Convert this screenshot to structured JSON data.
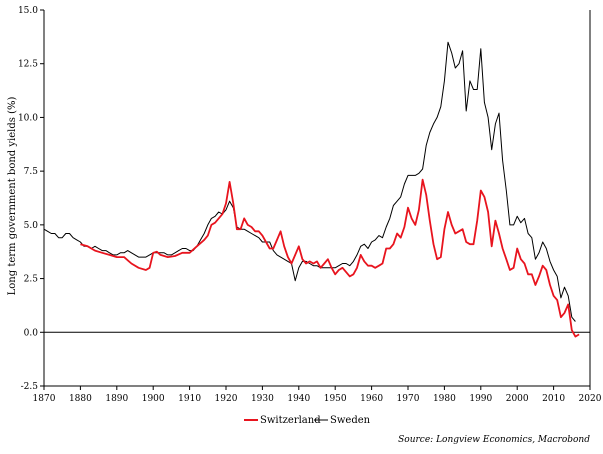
{
  "chart_data": {
    "type": "line",
    "title": "",
    "xlabel": "",
    "ylabel": "Long term government bond yields (%)",
    "xlim": [
      1870,
      2020
    ],
    "ylim": [
      -2.5,
      15.0
    ],
    "x_ticks": [
      1870,
      1880,
      1890,
      1900,
      1910,
      1920,
      1930,
      1940,
      1950,
      1960,
      1970,
      1980,
      1990,
      2000,
      2010,
      2020
    ],
    "y_ticks": [
      -2.5,
      0.0,
      2.5,
      5.0,
      7.5,
      10.0,
      12.5,
      15.0
    ],
    "y_tick_labels": [
      "-2.5",
      "0.0",
      "2.5",
      "5.0",
      "7.5",
      "10.0",
      "12.5",
      "15.0"
    ],
    "zero_line": true,
    "grid": false,
    "legend_position": "bottom-center",
    "source": "Source: Longview Economics, Macrobond",
    "series": [
      {
        "name": "Switzerland",
        "color": "#e8141e",
        "points": [
          [
            1880,
            4.1
          ],
          [
            1882,
            4.0
          ],
          [
            1884,
            3.8
          ],
          [
            1886,
            3.7
          ],
          [
            1888,
            3.6
          ],
          [
            1890,
            3.5
          ],
          [
            1892,
            3.5
          ],
          [
            1894,
            3.2
          ],
          [
            1896,
            3.0
          ],
          [
            1898,
            2.9
          ],
          [
            1899,
            3.0
          ],
          [
            1900,
            3.7
          ],
          [
            1901,
            3.75
          ],
          [
            1902,
            3.6
          ],
          [
            1904,
            3.5
          ],
          [
            1906,
            3.55
          ],
          [
            1908,
            3.7
          ],
          [
            1910,
            3.7
          ],
          [
            1912,
            4.0
          ],
          [
            1914,
            4.3
          ],
          [
            1915,
            4.5
          ],
          [
            1916,
            5.0
          ],
          [
            1917,
            5.1
          ],
          [
            1918,
            5.3
          ],
          [
            1919,
            5.5
          ],
          [
            1920,
            6.0
          ],
          [
            1921,
            7.0
          ],
          [
            1922,
            6.0
          ],
          [
            1923,
            4.8
          ],
          [
            1924,
            4.8
          ],
          [
            1925,
            5.3
          ],
          [
            1926,
            5.0
          ],
          [
            1927,
            4.9
          ],
          [
            1928,
            4.7
          ],
          [
            1929,
            4.7
          ],
          [
            1930,
            4.5
          ],
          [
            1931,
            4.2
          ],
          [
            1932,
            3.9
          ],
          [
            1933,
            3.9
          ],
          [
            1934,
            4.3
          ],
          [
            1935,
            4.7
          ],
          [
            1936,
            4.0
          ],
          [
            1937,
            3.5
          ],
          [
            1938,
            3.2
          ],
          [
            1939,
            3.6
          ],
          [
            1940,
            4.0
          ],
          [
            1941,
            3.4
          ],
          [
            1942,
            3.2
          ],
          [
            1943,
            3.3
          ],
          [
            1944,
            3.2
          ],
          [
            1945,
            3.3
          ],
          [
            1946,
            3.0
          ],
          [
            1947,
            3.2
          ],
          [
            1948,
            3.4
          ],
          [
            1949,
            3.0
          ],
          [
            1950,
            2.7
          ],
          [
            1951,
            2.9
          ],
          [
            1952,
            3.0
          ],
          [
            1953,
            2.8
          ],
          [
            1954,
            2.6
          ],
          [
            1955,
            2.7
          ],
          [
            1956,
            3.0
          ],
          [
            1957,
            3.6
          ],
          [
            1958,
            3.3
          ],
          [
            1959,
            3.1
          ],
          [
            1960,
            3.1
          ],
          [
            1961,
            3.0
          ],
          [
            1962,
            3.1
          ],
          [
            1963,
            3.2
          ],
          [
            1964,
            3.9
          ],
          [
            1965,
            3.9
          ],
          [
            1966,
            4.1
          ],
          [
            1967,
            4.6
          ],
          [
            1968,
            4.4
          ],
          [
            1969,
            4.9
          ],
          [
            1970,
            5.8
          ],
          [
            1971,
            5.3
          ],
          [
            1972,
            5.0
          ],
          [
            1973,
            5.7
          ],
          [
            1974,
            7.1
          ],
          [
            1975,
            6.4
          ],
          [
            1976,
            5.2
          ],
          [
            1977,
            4.1
          ],
          [
            1978,
            3.4
          ],
          [
            1979,
            3.5
          ],
          [
            1980,
            4.8
          ],
          [
            1981,
            5.6
          ],
          [
            1982,
            5.0
          ],
          [
            1983,
            4.6
          ],
          [
            1984,
            4.7
          ],
          [
            1985,
            4.8
          ],
          [
            1986,
            4.2
          ],
          [
            1987,
            4.1
          ],
          [
            1988,
            4.1
          ],
          [
            1989,
            5.2
          ],
          [
            1990,
            6.6
          ],
          [
            1991,
            6.3
          ],
          [
            1992,
            5.6
          ],
          [
            1993,
            4.0
          ],
          [
            1994,
            5.2
          ],
          [
            1995,
            4.6
          ],
          [
            1996,
            3.9
          ],
          [
            1997,
            3.4
          ],
          [
            1998,
            2.9
          ],
          [
            1999,
            3.0
          ],
          [
            2000,
            3.9
          ],
          [
            2001,
            3.4
          ],
          [
            2002,
            3.2
          ],
          [
            2003,
            2.7
          ],
          [
            2004,
            2.7
          ],
          [
            2005,
            2.2
          ],
          [
            2006,
            2.6
          ],
          [
            2007,
            3.1
          ],
          [
            2008,
            2.9
          ],
          [
            2009,
            2.2
          ],
          [
            2010,
            1.7
          ],
          [
            2011,
            1.5
          ],
          [
            2012,
            0.7
          ],
          [
            2013,
            0.9
          ],
          [
            2014,
            1.3
          ],
          [
            2015,
            0.1
          ],
          [
            2016,
            -0.2
          ],
          [
            2017,
            -0.1
          ]
        ]
      },
      {
        "name": "Sweden",
        "color": "#000000",
        "points": [
          [
            1870,
            4.8
          ],
          [
            1871,
            4.7
          ],
          [
            1872,
            4.6
          ],
          [
            1873,
            4.6
          ],
          [
            1874,
            4.4
          ],
          [
            1875,
            4.4
          ],
          [
            1876,
            4.6
          ],
          [
            1877,
            4.6
          ],
          [
            1878,
            4.4
          ],
          [
            1879,
            4.3
          ],
          [
            1880,
            4.2
          ],
          [
            1881,
            4.0
          ],
          [
            1882,
            4.0
          ],
          [
            1883,
            3.9
          ],
          [
            1884,
            4.0
          ],
          [
            1885,
            3.9
          ],
          [
            1886,
            3.8
          ],
          [
            1887,
            3.8
          ],
          [
            1888,
            3.7
          ],
          [
            1889,
            3.6
          ],
          [
            1890,
            3.6
          ],
          [
            1891,
            3.7
          ],
          [
            1892,
            3.7
          ],
          [
            1893,
            3.8
          ],
          [
            1894,
            3.7
          ],
          [
            1895,
            3.6
          ],
          [
            1896,
            3.5
          ],
          [
            1897,
            3.5
          ],
          [
            1898,
            3.5
          ],
          [
            1899,
            3.6
          ],
          [
            1900,
            3.7
          ],
          [
            1901,
            3.7
          ],
          [
            1902,
            3.7
          ],
          [
            1903,
            3.7
          ],
          [
            1904,
            3.6
          ],
          [
            1905,
            3.6
          ],
          [
            1906,
            3.7
          ],
          [
            1907,
            3.8
          ],
          [
            1908,
            3.9
          ],
          [
            1909,
            3.9
          ],
          [
            1910,
            3.8
          ],
          [
            1911,
            3.8
          ],
          [
            1912,
            4.0
          ],
          [
            1913,
            4.3
          ],
          [
            1914,
            4.6
          ],
          [
            1915,
            5.0
          ],
          [
            1916,
            5.3
          ],
          [
            1917,
            5.4
          ],
          [
            1918,
            5.6
          ],
          [
            1919,
            5.5
          ],
          [
            1920,
            5.7
          ],
          [
            1921,
            6.1
          ],
          [
            1922,
            5.8
          ],
          [
            1923,
            4.9
          ],
          [
            1924,
            4.8
          ],
          [
            1925,
            4.8
          ],
          [
            1926,
            4.7
          ],
          [
            1927,
            4.6
          ],
          [
            1928,
            4.5
          ],
          [
            1929,
            4.4
          ],
          [
            1930,
            4.2
          ],
          [
            1931,
            4.2
          ],
          [
            1932,
            4.2
          ],
          [
            1933,
            3.8
          ],
          [
            1934,
            3.6
          ],
          [
            1935,
            3.5
          ],
          [
            1936,
            3.4
          ],
          [
            1937,
            3.3
          ],
          [
            1938,
            3.2
          ],
          [
            1939,
            2.4
          ],
          [
            1940,
            3.0
          ],
          [
            1941,
            3.3
          ],
          [
            1942,
            3.3
          ],
          [
            1943,
            3.2
          ],
          [
            1944,
            3.1
          ],
          [
            1945,
            3.1
          ],
          [
            1946,
            3.0
          ],
          [
            1947,
            3.0
          ],
          [
            1948,
            3.0
          ],
          [
            1949,
            3.0
          ],
          [
            1950,
            3.0
          ],
          [
            1951,
            3.1
          ],
          [
            1952,
            3.2
          ],
          [
            1953,
            3.2
          ],
          [
            1954,
            3.1
          ],
          [
            1955,
            3.3
          ],
          [
            1956,
            3.6
          ],
          [
            1957,
            4.0
          ],
          [
            1958,
            4.1
          ],
          [
            1959,
            3.9
          ],
          [
            1960,
            4.2
          ],
          [
            1961,
            4.3
          ],
          [
            1962,
            4.5
          ],
          [
            1963,
            4.4
          ],
          [
            1964,
            4.9
          ],
          [
            1965,
            5.3
          ],
          [
            1966,
            5.9
          ],
          [
            1967,
            6.1
          ],
          [
            1968,
            6.3
          ],
          [
            1969,
            6.9
          ],
          [
            1970,
            7.3
          ],
          [
            1971,
            7.3
          ],
          [
            1972,
            7.3
          ],
          [
            1973,
            7.4
          ],
          [
            1974,
            7.6
          ],
          [
            1975,
            8.7
          ],
          [
            1976,
            9.3
          ],
          [
            1977,
            9.7
          ],
          [
            1978,
            10.0
          ],
          [
            1979,
            10.5
          ],
          [
            1980,
            11.7
          ],
          [
            1981,
            13.5
          ],
          [
            1982,
            13.0
          ],
          [
            1983,
            12.3
          ],
          [
            1984,
            12.5
          ],
          [
            1985,
            13.1
          ],
          [
            1986,
            10.3
          ],
          [
            1987,
            11.7
          ],
          [
            1988,
            11.3
          ],
          [
            1989,
            11.3
          ],
          [
            1990,
            13.2
          ],
          [
            1991,
            10.7
          ],
          [
            1992,
            10.0
          ],
          [
            1993,
            8.5
          ],
          [
            1994,
            9.7
          ],
          [
            1995,
            10.2
          ],
          [
            1996,
            8.0
          ],
          [
            1997,
            6.6
          ],
          [
            1998,
            5.0
          ],
          [
            1999,
            5.0
          ],
          [
            2000,
            5.4
          ],
          [
            2001,
            5.1
          ],
          [
            2002,
            5.3
          ],
          [
            2003,
            4.6
          ],
          [
            2004,
            4.4
          ],
          [
            2005,
            3.4
          ],
          [
            2006,
            3.7
          ],
          [
            2007,
            4.2
          ],
          [
            2008,
            3.9
          ],
          [
            2009,
            3.3
          ],
          [
            2010,
            2.9
          ],
          [
            2011,
            2.6
          ],
          [
            2012,
            1.6
          ],
          [
            2013,
            2.1
          ],
          [
            2014,
            1.7
          ],
          [
            2015,
            0.7
          ],
          [
            2016,
            0.5
          ]
        ]
      }
    ]
  }
}
